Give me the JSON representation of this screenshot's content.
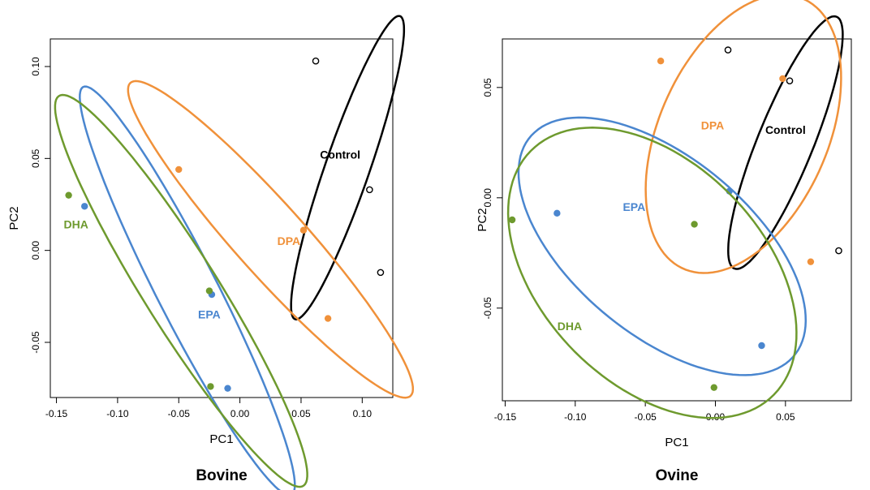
{
  "chart_data": [
    {
      "type": "scatter",
      "title": "Bovine",
      "xlabel": "PC1",
      "ylabel": "PC2",
      "xticks": [
        "-0.15",
        "-0.10",
        "-0.05",
        "0.00",
        "0.05",
        "0.10"
      ],
      "yticks": [
        "-0.05",
        "0.00",
        "0.05",
        "0.10"
      ],
      "xlim": [
        -0.155,
        0.125
      ],
      "ylim": [
        -0.08,
        0.115
      ],
      "grid": false,
      "legend": "none",
      "series": [
        {
          "name": "Control",
          "color": "#000000",
          "hollow": true,
          "points": [
            [
              0.062,
              0.103
            ],
            [
              0.106,
              0.033
            ],
            [
              0.115,
              -0.012
            ]
          ],
          "ellipse": {
            "cx": 0.088,
            "cy": 0.045,
            "a": 0.093,
            "b": 0.017,
            "angle_deg": 62
          }
        },
        {
          "name": "DPA",
          "color": "#f0913a",
          "hollow": false,
          "points": [
            [
              -0.05,
              0.044
            ],
            [
              0.052,
              0.011
            ],
            [
              0.072,
              -0.037
            ]
          ],
          "ellipse": {
            "cx": 0.025,
            "cy": 0.006,
            "a": 0.143,
            "b": 0.023,
            "angle_deg": -36
          }
        },
        {
          "name": "EPA",
          "color": "#4a86cf",
          "hollow": false,
          "points": [
            [
              -0.127,
              0.024
            ],
            [
              -0.023,
              -0.024
            ],
            [
              -0.01,
              -0.075
            ]
          ],
          "ellipse": {
            "cx": -0.043,
            "cy": -0.022,
            "a": 0.14,
            "b": 0.022,
            "angle_deg": -52
          }
        },
        {
          "name": "DHA",
          "color": "#6e9a2e",
          "hollow": false,
          "points": [
            [
              -0.14,
              0.03
            ],
            [
              -0.025,
              -0.022
            ],
            [
              -0.024,
              -0.074
            ]
          ],
          "ellipse": {
            "cx": -0.048,
            "cy": -0.022,
            "a": 0.146,
            "b": 0.026,
            "angle_deg": -46
          }
        }
      ],
      "annotations": [
        {
          "text": "Control",
          "x": 0.082,
          "y": 0.05,
          "color": "#000000"
        },
        {
          "text": "DPA",
          "x": 0.04,
          "y": 0.003,
          "color": "#f0913a"
        },
        {
          "text": "EPA",
          "x": -0.025,
          "y": -0.037,
          "color": "#4a86cf"
        },
        {
          "text": "DHA",
          "x": -0.134,
          "y": 0.012,
          "color": "#6e9a2e"
        }
      ]
    },
    {
      "type": "scatter",
      "title": "Ovine",
      "xlabel": "PC1",
      "ylabel": "PC2",
      "xticks": [
        "-0.15",
        "-0.10",
        "-0.05",
        "0.00",
        "0.05"
      ],
      "yticks": [
        "-0.05",
        "0.00",
        "0.05"
      ],
      "xlim": [
        -0.152,
        0.097
      ],
      "ylim": [
        -0.092,
        0.072
      ],
      "grid": false,
      "legend": "none",
      "series": [
        {
          "name": "Control",
          "color": "#000000",
          "hollow": true,
          "points": [
            [
              0.009,
              0.067
            ],
            [
              0.053,
              0.053
            ],
            [
              0.088,
              -0.024
            ]
          ],
          "ellipse": {
            "cx": 0.05,
            "cy": 0.025,
            "a": 0.068,
            "b": 0.018,
            "angle_deg": 56
          }
        },
        {
          "name": "DPA",
          "color": "#f0913a",
          "hollow": false,
          "points": [
            [
              -0.039,
              0.062
            ],
            [
              0.048,
              0.054
            ],
            [
              0.068,
              -0.029
            ]
          ],
          "ellipse": {
            "cx": 0.02,
            "cy": 0.029,
            "a": 0.079,
            "b": 0.051,
            "angle_deg": 38
          }
        },
        {
          "name": "EPA",
          "color": "#4a86cf",
          "hollow": false,
          "points": [
            [
              -0.113,
              -0.007
            ],
            [
              0.01,
              0.003
            ],
            [
              0.033,
              -0.067
            ]
          ],
          "ellipse": {
            "cx": -0.038,
            "cy": -0.022,
            "a": 0.109,
            "b": 0.045,
            "angle_deg": -22
          }
        },
        {
          "name": "DHA",
          "color": "#6e9a2e",
          "hollow": false,
          "points": [
            [
              -0.145,
              -0.01
            ],
            [
              -0.015,
              -0.012
            ],
            [
              -0.001,
              -0.086
            ]
          ],
          "ellipse": {
            "cx": -0.045,
            "cy": -0.034,
            "a": 0.108,
            "b": 0.057,
            "angle_deg": -21
          }
        }
      ],
      "annotations": [
        {
          "text": "Control",
          "x": 0.05,
          "y": 0.029,
          "color": "#000000"
        },
        {
          "text": "DPA",
          "x": -0.002,
          "y": 0.031,
          "color": "#f0913a"
        },
        {
          "text": "EPA",
          "x": -0.058,
          "y": -0.006,
          "color": "#4a86cf"
        },
        {
          "text": "DHA",
          "x": -0.104,
          "y": -0.06,
          "color": "#6e9a2e"
        }
      ]
    }
  ]
}
